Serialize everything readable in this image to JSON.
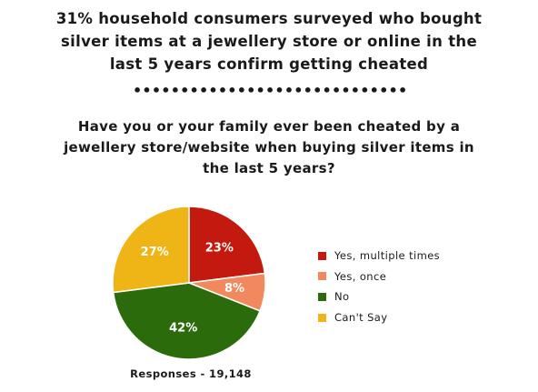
{
  "headline": {
    "lines": [
      "31% household consumers surveyed who bought",
      "silver items at a jewellery store or online in the",
      "last 5 years confirm getting cheated"
    ]
  },
  "divider": "•••••••••••••••••••••••••••••••",
  "question": {
    "lines": [
      "Have you or your family ever been cheated by a",
      "jewellery store/website when buying silver items in",
      "the last 5 years?"
    ]
  },
  "chart_data": {
    "type": "pie",
    "slices": [
      {
        "label": "Yes, multiple times",
        "value": 23,
        "display": "23%",
        "color": "#c4190f"
      },
      {
        "label": "Yes, once",
        "value": 8,
        "display": "8%",
        "color": "#f1885e"
      },
      {
        "label": "No",
        "value": 42,
        "display": "42%",
        "color": "#2c6b0b"
      },
      {
        "label": "Can't Say",
        "value": 27,
        "display": "27%",
        "color": "#efb416"
      }
    ],
    "legend_position": "right",
    "footer": "Responses - 19,148"
  }
}
